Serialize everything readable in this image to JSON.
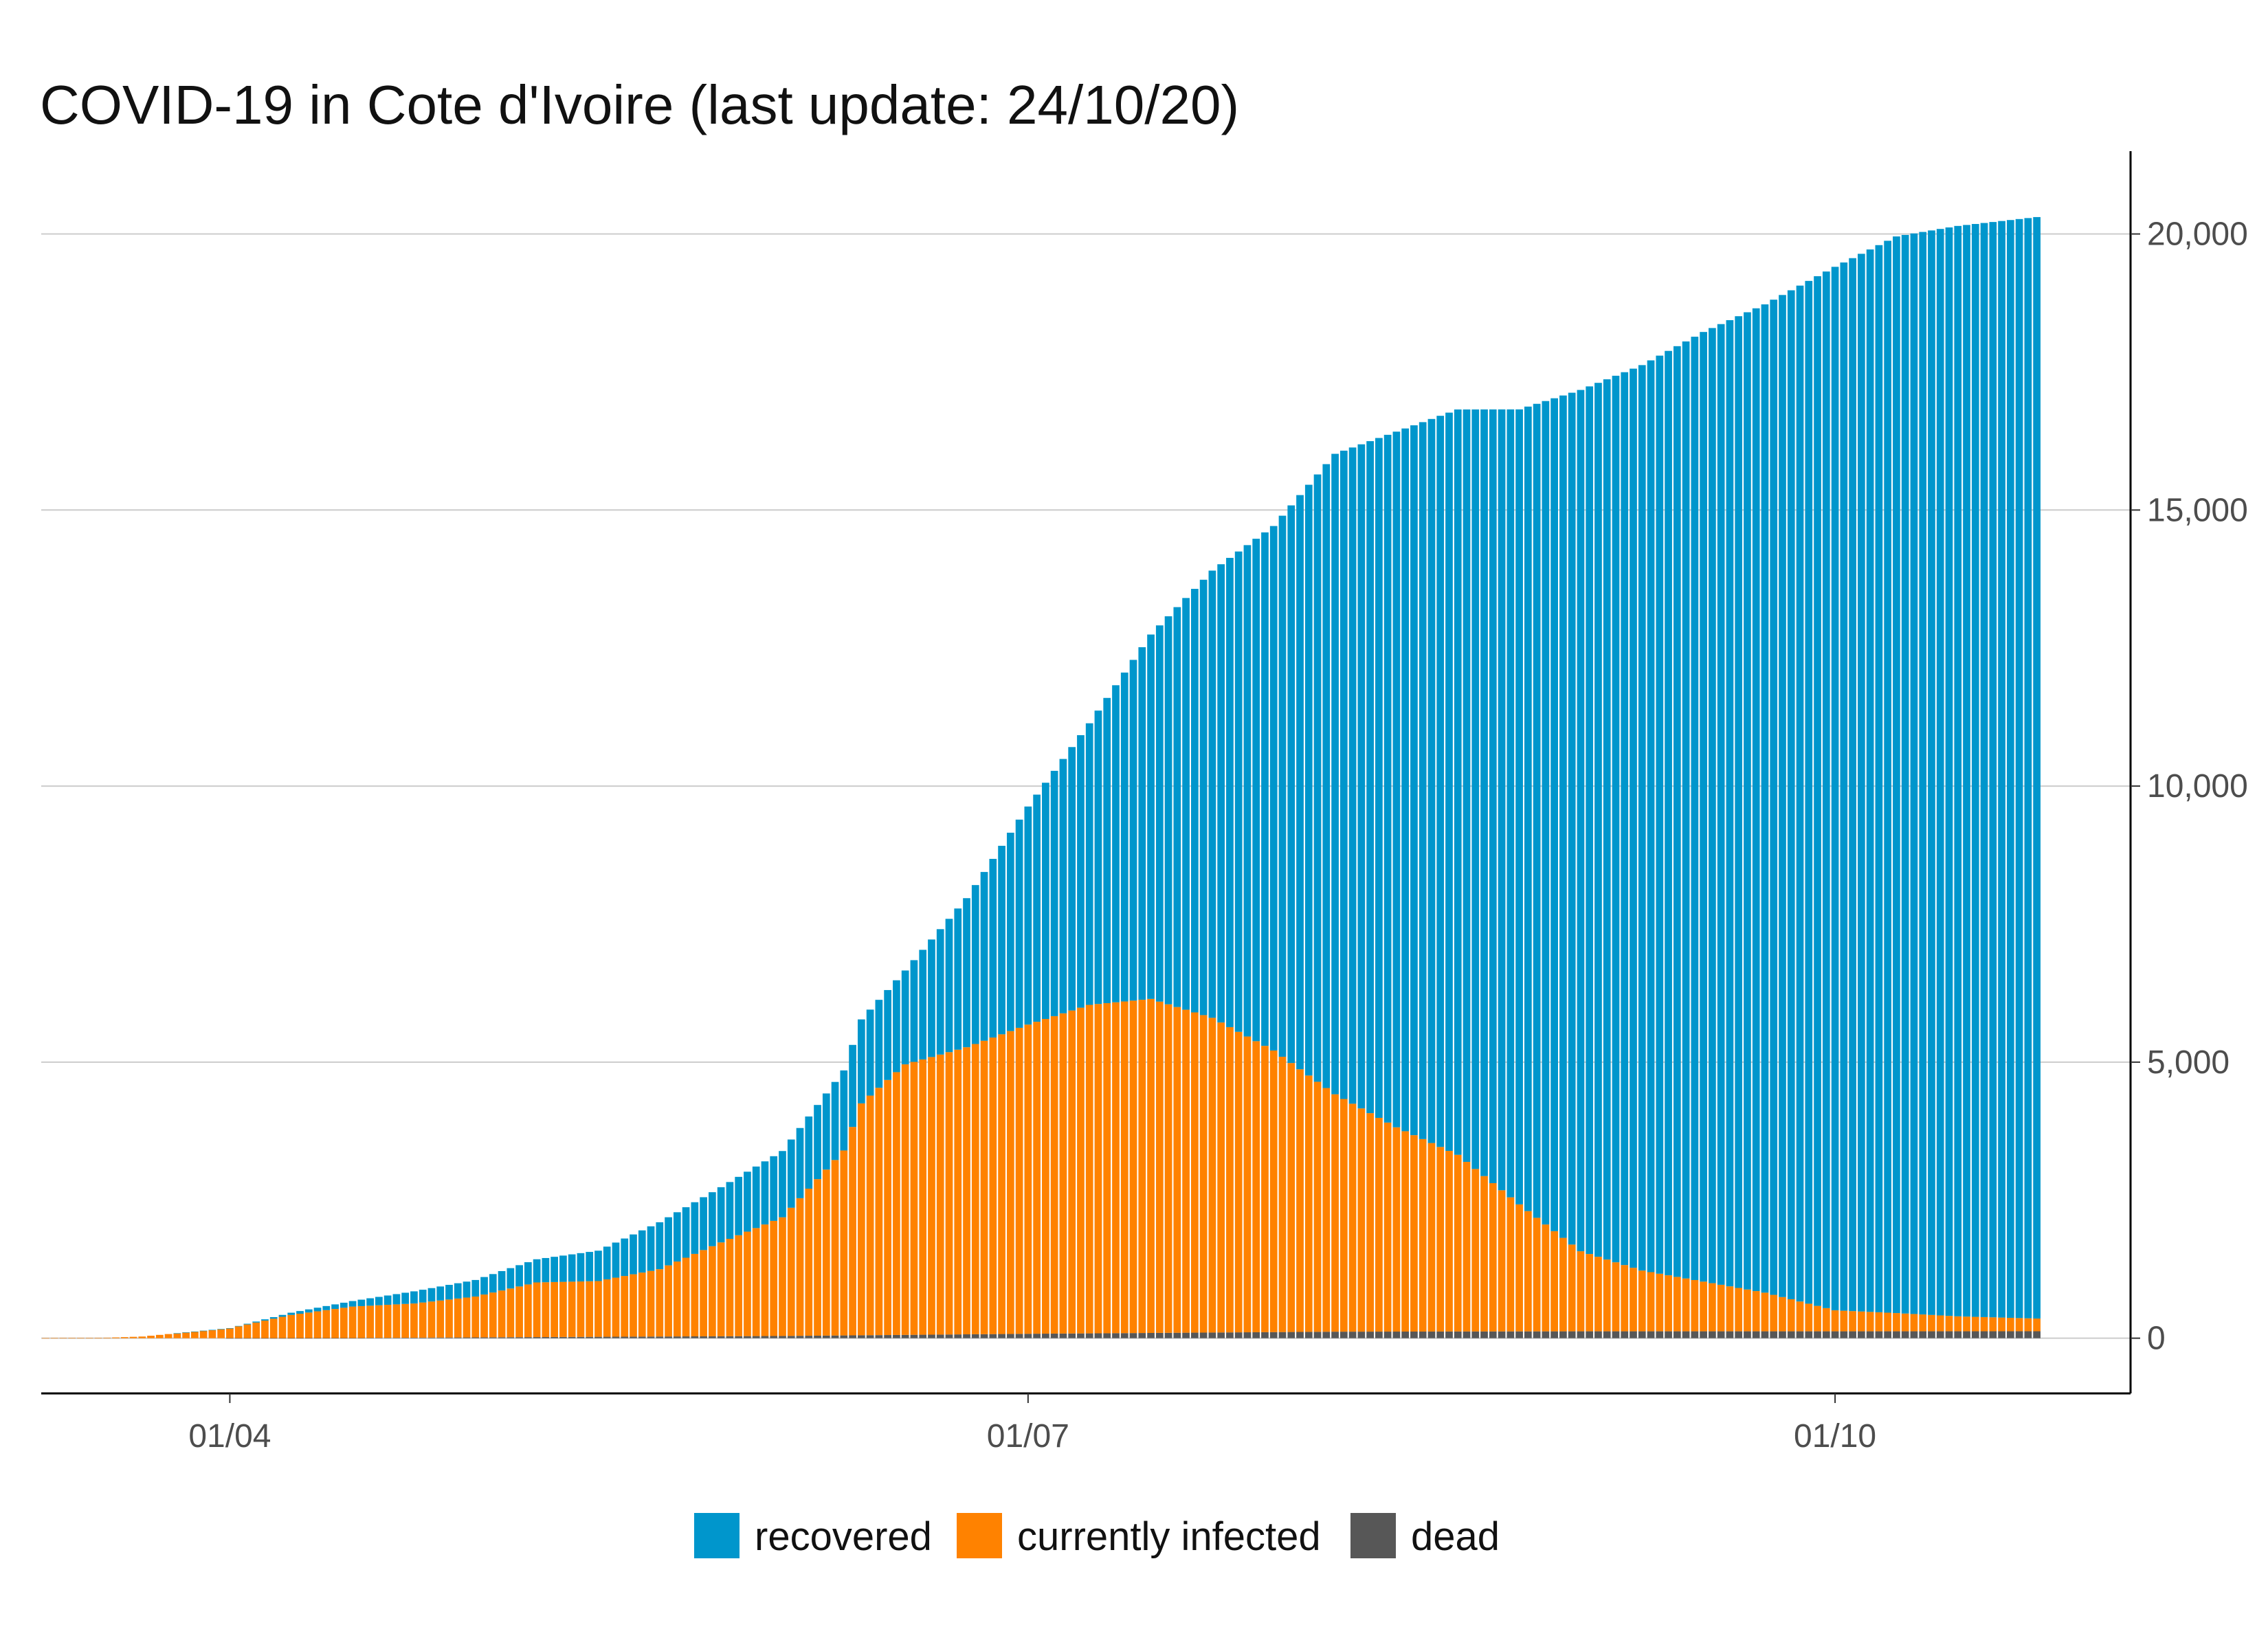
{
  "chart_data": {
    "type": "bar",
    "stacked": true,
    "title": "COVID-19 in Cote d'Ivoire (last update: 24/10/20)",
    "xlabel": "",
    "ylabel": "",
    "date_start": "2020-03-11",
    "date_end": "2020-10-24",
    "x_ticks": [
      {
        "date": "2020-04-01",
        "label": "01/04"
      },
      {
        "date": "2020-07-01",
        "label": "01/07"
      },
      {
        "date": "2020-10-01",
        "label": "01/10"
      }
    ],
    "y_ticks": [
      {
        "value": 0,
        "label": "0"
      },
      {
        "value": 5000,
        "label": "5,000"
      },
      {
        "value": 10000,
        "label": "10,000"
      },
      {
        "value": 15000,
        "label": "15,000"
      },
      {
        "value": 20000,
        "label": "20,000"
      }
    ],
    "ylim": [
      -1000,
      21500
    ],
    "y_axis_position": "right",
    "grid": "horizontal",
    "legend_position": "bottom",
    "series": [
      {
        "name": "recovered",
        "color": "#0096cc",
        "keyframes": [
          [
            "2020-03-11",
            0
          ],
          [
            "2020-03-25",
            0
          ],
          [
            "2020-04-01",
            2
          ],
          [
            "2020-04-08",
            40
          ],
          [
            "2020-04-15",
            100
          ],
          [
            "2020-04-22",
            220
          ],
          [
            "2020-04-29",
            300
          ],
          [
            "2020-05-06",
            420
          ],
          [
            "2020-05-13",
            550
          ],
          [
            "2020-05-20",
            850
          ],
          [
            "2020-05-27",
            1000
          ],
          [
            "2020-06-03",
            1200
          ],
          [
            "2020-06-10",
            1450
          ],
          [
            "2020-06-17",
            1700
          ],
          [
            "2020-06-24",
            2700
          ],
          [
            "2020-07-01",
            3950
          ],
          [
            "2020-07-08",
            5100
          ],
          [
            "2020-07-15",
            6600
          ],
          [
            "2020-07-22",
            8100
          ],
          [
            "2020-07-29",
            9500
          ],
          [
            "2020-08-05",
            11600
          ],
          [
            "2020-08-12",
            12600
          ],
          [
            "2020-08-19",
            13500
          ],
          [
            "2020-08-26",
            14400
          ],
          [
            "2020-09-02",
            15600
          ],
          [
            "2020-09-09",
            16400
          ],
          [
            "2020-09-16",
            17200
          ],
          [
            "2020-09-23",
            17900
          ],
          [
            "2020-10-01",
            18900
          ],
          [
            "2020-10-08",
            19500
          ],
          [
            "2020-10-15",
            19750
          ],
          [
            "2020-10-24",
            19950
          ]
        ]
      },
      {
        "name": "currently infected",
        "color": "#ff8200",
        "keyframes": [
          [
            "2020-03-11",
            1
          ],
          [
            "2020-03-18",
            9
          ],
          [
            "2020-03-22",
            30
          ],
          [
            "2020-03-26",
            90
          ],
          [
            "2020-04-01",
            180
          ],
          [
            "2020-04-08",
            420
          ],
          [
            "2020-04-15",
            570
          ],
          [
            "2020-04-22",
            620
          ],
          [
            "2020-04-29",
            740
          ],
          [
            "2020-05-06",
            990
          ],
          [
            "2020-05-13",
            1010
          ],
          [
            "2020-05-20",
            1220
          ],
          [
            "2020-05-27",
            1700
          ],
          [
            "2020-06-03",
            2150
          ],
          [
            "2020-06-10",
            3350
          ],
          [
            "2020-06-12",
            4200
          ],
          [
            "2020-06-17",
            4900
          ],
          [
            "2020-06-24",
            5200
          ],
          [
            "2020-07-01",
            5600
          ],
          [
            "2020-07-08",
            5950
          ],
          [
            "2020-07-15",
            6050
          ],
          [
            "2020-07-22",
            5700
          ],
          [
            "2020-07-29",
            5100
          ],
          [
            "2020-08-05",
            4300
          ],
          [
            "2020-08-12",
            3700
          ],
          [
            "2020-08-19",
            3200
          ],
          [
            "2020-08-26",
            2300
          ],
          [
            "2020-09-02",
            1450
          ],
          [
            "2020-09-09",
            1100
          ],
          [
            "2020-09-16",
            900
          ],
          [
            "2020-09-23",
            700
          ],
          [
            "2020-10-01",
            380
          ],
          [
            "2020-10-08",
            330
          ],
          [
            "2020-10-15",
            270
          ],
          [
            "2020-10-24",
            230
          ]
        ]
      },
      {
        "name": "dead",
        "color": "#575757",
        "keyframes": [
          [
            "2020-03-11",
            0
          ],
          [
            "2020-03-31",
            0
          ],
          [
            "2020-04-15",
            3
          ],
          [
            "2020-05-06",
            20
          ],
          [
            "2020-06-03",
            40
          ],
          [
            "2020-07-01",
            80
          ],
          [
            "2020-08-05",
            118
          ],
          [
            "2020-09-02",
            125
          ],
          [
            "2020-10-01",
            125
          ],
          [
            "2020-10-24",
            126
          ]
        ]
      }
    ]
  }
}
